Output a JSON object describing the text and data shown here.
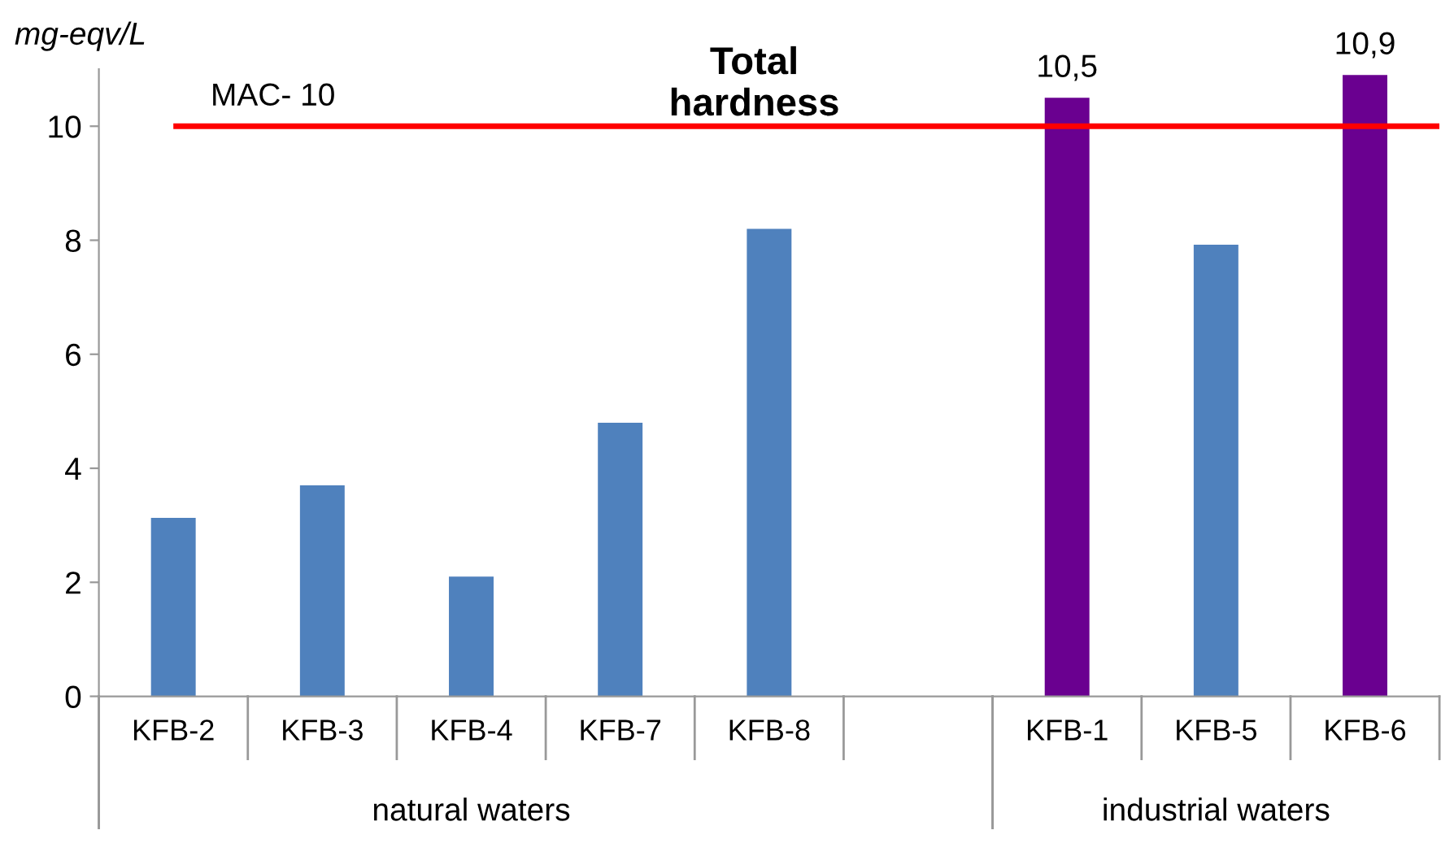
{
  "chart_data": {
    "type": "bar",
    "title": "Total\nhardness",
    "ylabel": "mg-eqv/L",
    "categories": [
      "KFB-2",
      "KFB-3",
      "KFB-4",
      "KFB-7",
      "KFB-8",
      null,
      "KFB-1",
      "KFB-5",
      "KFB-6"
    ],
    "values": [
      3.13,
      3.7,
      2.1,
      4.8,
      8.2,
      null,
      10.5,
      7.92,
      10.9
    ],
    "colors": [
      "#4f81bd",
      "#4f81bd",
      "#4f81bd",
      "#4f81bd",
      "#4f81bd",
      "#4f81bd",
      "#6a0090",
      "#4f81bd",
      "#6a0090"
    ],
    "value_labels": [
      null,
      null,
      null,
      null,
      null,
      null,
      "10,5",
      null,
      "10,9"
    ],
    "annotations": [
      "natural waters",
      "industrial waters"
    ],
    "ref_lines": [
      {
        "axis": "y",
        "value": 10,
        "label": "MAC- 10",
        "color": "#ff0000"
      }
    ],
    "ylim": [
      0,
      11
    ],
    "yticks": [
      0,
      2,
      4,
      6,
      8,
      10
    ],
    "grid": false
  }
}
